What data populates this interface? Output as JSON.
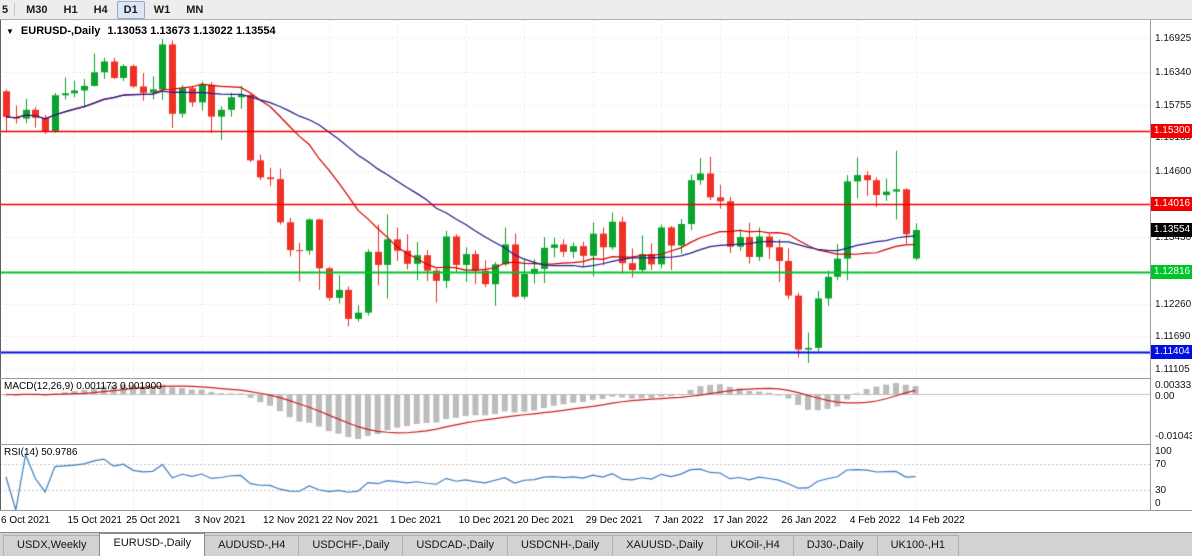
{
  "toolbar": {
    "partial_label": "5",
    "buttons": [
      "M30",
      "H1",
      "H4",
      "D1",
      "W1",
      "MN"
    ],
    "active": "D1"
  },
  "chart": {
    "marker": "▼",
    "symbol_label": "EURUSD-,Daily",
    "ohlc_text": "1.13053 1.13673 1.13022 1.13554",
    "current_price_label": "1.13554",
    "current_badge_color": "#000000"
  },
  "chart_data": {
    "type": "candlestick",
    "symbol": "EURUSD-",
    "timeframe": "Daily",
    "y_range": [
      1.1095,
      1.1725
    ],
    "y_tick_labels": [
      "1.16925",
      "1.16340",
      "1.15755",
      "1.15185",
      "1.14600",
      "1.13430",
      "1.12260",
      "1.11690",
      "1.11105"
    ],
    "y_tick_values": [
      1.16925,
      1.1634,
      1.15755,
      1.15185,
      1.146,
      1.1343,
      1.1226,
      1.1169,
      1.11105
    ],
    "x_tick_labels": [
      "6 Oct 2021",
      "15 Oct 2021",
      "25 Oct 2021",
      "3 Nov 2021",
      "12 Nov 2021",
      "22 Nov 2021",
      "1 Dec 2021",
      "10 Dec 2021",
      "20 Dec 2021",
      "29 Dec 2021",
      "7 Jan 2022",
      "17 Jan 2022",
      "26 Jan 2022",
      "4 Feb 2022",
      "14 Feb 2022"
    ],
    "x_tick_indices": [
      0,
      7,
      13,
      20,
      27,
      33,
      40,
      47,
      53,
      60,
      67,
      73,
      80,
      87,
      93
    ],
    "colors": {
      "bull": "#0aa32d",
      "bear": "#ee3124",
      "grid": "#dcdcdc",
      "ma_fast": "#d40000",
      "ma_slow": "#20208c"
    },
    "ma_periods": {
      "fast": 16,
      "slow": 28
    },
    "hlines": [
      {
        "label": "1.15300",
        "value": 1.153,
        "color": "#f00000",
        "width": 1.5
      },
      {
        "label": "1.14016",
        "value": 1.14016,
        "color": "#f00000",
        "width": 1.5
      },
      {
        "label": "1.12816",
        "value": 1.12816,
        "color": "#00c42a",
        "width": 2
      },
      {
        "label": "1.11404",
        "value": 1.11404,
        "color": "#0010e0",
        "width": 2
      }
    ],
    "current_price": 1.13554,
    "candles": [
      [
        1.15995,
        1.1603,
        1.1529,
        1.15545
      ],
      [
        1.15545,
        1.15745,
        1.1543,
        1.15515
      ],
      [
        1.15515,
        1.1586,
        1.15435,
        1.1567
      ],
      [
        1.1567,
        1.1572,
        1.15355,
        1.1553
      ],
      [
        1.1553,
        1.1558,
        1.15245,
        1.1529
      ],
      [
        1.1529,
        1.15965,
        1.15265,
        1.15925
      ],
      [
        1.15925,
        1.1624,
        1.1585,
        1.1596
      ],
      [
        1.1596,
        1.1618,
        1.1589,
        1.1601
      ],
      [
        1.1601,
        1.1621,
        1.15715,
        1.1609
      ],
      [
        1.1609,
        1.1666,
        1.1608,
        1.1633
      ],
      [
        1.1633,
        1.16585,
        1.16215,
        1.1652
      ],
      [
        1.1652,
        1.16585,
        1.1621,
        1.1623
      ],
      [
        1.1623,
        1.1647,
        1.16175,
        1.1644
      ],
      [
        1.1644,
        1.16465,
        1.1606,
        1.1608
      ],
      [
        1.1608,
        1.1632,
        1.1583,
        1.1597
      ],
      [
        1.1597,
        1.1626,
        1.15855,
        1.1603
      ],
      [
        1.1603,
        1.1692,
        1.15845,
        1.1682
      ],
      [
        1.1682,
        1.1689,
        1.1535,
        1.156
      ],
      [
        1.156,
        1.16105,
        1.15535,
        1.1605
      ],
      [
        1.1605,
        1.16095,
        1.1572,
        1.158
      ],
      [
        1.158,
        1.16165,
        1.15655,
        1.1611
      ],
      [
        1.1611,
        1.1616,
        1.1526,
        1.1555
      ],
      [
        1.1555,
        1.1573,
        1.15135,
        1.1567
      ],
      [
        1.1567,
        1.1597,
        1.1555,
        1.1589
      ],
      [
        1.1589,
        1.1609,
        1.15685,
        1.1593
      ],
      [
        1.1593,
        1.1595,
        1.1475,
        1.1478
      ],
      [
        1.1478,
        1.1488,
        1.14435,
        1.1448
      ],
      [
        1.1448,
        1.1465,
        1.1433,
        1.1445
      ],
      [
        1.1445,
        1.14635,
        1.1365,
        1.1369
      ],
      [
        1.1369,
        1.1377,
        1.1309,
        1.132
      ],
      [
        1.132,
        1.1333,
        1.1265,
        1.1319
      ],
      [
        1.1319,
        1.1376,
        1.1312,
        1.1374
      ],
      [
        1.1374,
        1.13755,
        1.125,
        1.1288
      ],
      [
        1.1288,
        1.1291,
        1.1231,
        1.1236
      ],
      [
        1.1236,
        1.1276,
        1.1226,
        1.125
      ],
      [
        1.125,
        1.1256,
        1.1186,
        1.1199
      ],
      [
        1.1199,
        1.1223,
        1.1194,
        1.121
      ],
      [
        1.121,
        1.13215,
        1.1205,
        1.1317
      ],
      [
        1.1317,
        1.1365,
        1.1258,
        1.1294
      ],
      [
        1.1294,
        1.1383,
        1.1235,
        1.1339
      ],
      [
        1.1339,
        1.136,
        1.1301,
        1.1319
      ],
      [
        1.1319,
        1.1348,
        1.1286,
        1.1296
      ],
      [
        1.1296,
        1.1334,
        1.1267,
        1.1311
      ],
      [
        1.1311,
        1.132,
        1.12655,
        1.1284
      ],
      [
        1.1284,
        1.1287,
        1.1228,
        1.1266
      ],
      [
        1.1266,
        1.1354,
        1.1253,
        1.1344
      ],
      [
        1.1344,
        1.1348,
        1.128,
        1.1294
      ],
      [
        1.1294,
        1.1325,
        1.1264,
        1.1313
      ],
      [
        1.1313,
        1.1319,
        1.126,
        1.1284
      ],
      [
        1.1284,
        1.1302,
        1.1255,
        1.126
      ],
      [
        1.126,
        1.1299,
        1.1222,
        1.1295
      ],
      [
        1.1295,
        1.136,
        1.1292,
        1.133
      ],
      [
        1.133,
        1.1349,
        1.1236,
        1.1238
      ],
      [
        1.1238,
        1.1305,
        1.1234,
        1.1278
      ],
      [
        1.1278,
        1.1304,
        1.1261,
        1.1287
      ],
      [
        1.1287,
        1.1343,
        1.1262,
        1.1324
      ],
      [
        1.1324,
        1.1342,
        1.1307,
        1.133
      ],
      [
        1.133,
        1.1339,
        1.1308,
        1.1317
      ],
      [
        1.1317,
        1.13335,
        1.1306,
        1.1327
      ],
      [
        1.1327,
        1.1335,
        1.1292,
        1.131
      ],
      [
        1.131,
        1.1369,
        1.1274,
        1.1349
      ],
      [
        1.1349,
        1.136,
        1.1293,
        1.1325
      ],
      [
        1.1325,
        1.1386,
        1.1321,
        1.137
      ],
      [
        1.137,
        1.1379,
        1.1279,
        1.1297
      ],
      [
        1.1297,
        1.1323,
        1.1272,
        1.1285
      ],
      [
        1.1285,
        1.1346,
        1.1279,
        1.1313
      ],
      [
        1.1313,
        1.1332,
        1.1285,
        1.1295
      ],
      [
        1.1295,
        1.1365,
        1.1288,
        1.136
      ],
      [
        1.136,
        1.13625,
        1.1285,
        1.1328
      ],
      [
        1.1328,
        1.1375,
        1.1314,
        1.1366
      ],
      [
        1.1366,
        1.1453,
        1.1355,
        1.1443
      ],
      [
        1.1443,
        1.1482,
        1.1435,
        1.1455
      ],
      [
        1.1455,
        1.1484,
        1.1408,
        1.1413
      ],
      [
        1.1413,
        1.1435,
        1.1393,
        1.1406
      ],
      [
        1.1406,
        1.1414,
        1.1315,
        1.1326
      ],
      [
        1.1326,
        1.1356,
        1.1319,
        1.1343
      ],
      [
        1.1343,
        1.1368,
        1.1296,
        1.1308
      ],
      [
        1.1308,
        1.136,
        1.1301,
        1.1344
      ],
      [
        1.1344,
        1.1349,
        1.13045,
        1.1325
      ],
      [
        1.1325,
        1.1339,
        1.1264,
        1.1301
      ],
      [
        1.1301,
        1.1323,
        1.1234,
        1.124
      ],
      [
        1.124,
        1.1245,
        1.1131,
        1.1145
      ],
      [
        1.1145,
        1.1175,
        1.11215,
        1.1148
      ],
      [
        1.1148,
        1.1248,
        1.1142,
        1.1235
      ],
      [
        1.1235,
        1.1284,
        1.1222,
        1.1273
      ],
      [
        1.1273,
        1.1331,
        1.1267,
        1.1305
      ],
      [
        1.1305,
        1.1452,
        1.1267,
        1.1441
      ],
      [
        1.1441,
        1.1483,
        1.1411,
        1.1452
      ],
      [
        1.1452,
        1.1459,
        1.1415,
        1.1443
      ],
      [
        1.1443,
        1.1448,
        1.1396,
        1.1417
      ],
      [
        1.1417,
        1.1446,
        1.1407,
        1.1423
      ],
      [
        1.1423,
        1.1495,
        1.1374,
        1.1427
      ],
      [
        1.1427,
        1.1429,
        1.1331,
        1.1348
      ],
      [
        1.13053,
        1.13673,
        1.13022,
        1.13554
      ]
    ]
  },
  "macd": {
    "label": "MACD(12,26,9) 0.001173 0.001900",
    "fast": 12,
    "slow": 26,
    "signal": 9,
    "y_axis_labels": [
      "0.003331",
      "0.00",
      "-0.010435"
    ],
    "histogram_color": "#bcbcbc",
    "signal_color": "#cf1f1f"
  },
  "rsi": {
    "label": "RSI(14) 50.9786",
    "period": 14,
    "levels": [
      70,
      30
    ],
    "y_axis_labels": [
      "100",
      "70",
      "30",
      "0"
    ],
    "line_color": "#3d7ec0",
    "level_color": "#c9c9c9"
  },
  "tabs": {
    "items": [
      "USDX,Weekly",
      "EURUSD-,Daily",
      "AUDUSD-,H4",
      "USDCHF-,Daily",
      "USDCAD-,Daily",
      "USDCNH-,Daily",
      "XAUUSD-,Daily",
      "UKOil-,H4",
      "DJ30-,Daily",
      "UK100-,H1"
    ],
    "active": "EURUSD-,Daily"
  }
}
